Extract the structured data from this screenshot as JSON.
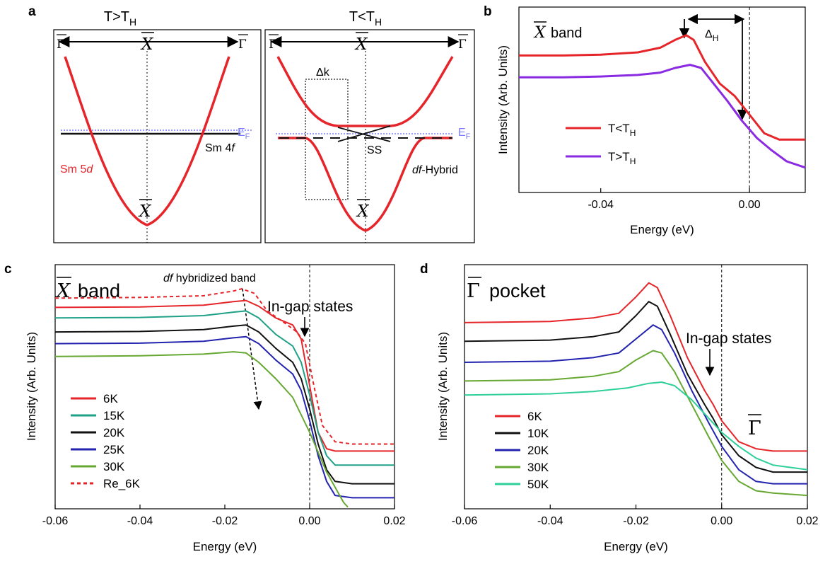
{
  "panels": {
    "a_left": {
      "label": "a",
      "title_main": "T>T",
      "title_sub": "H",
      "gamma": "Γ",
      "xbar": "X",
      "ef_main": "E",
      "ef_sub": "F",
      "flat_label_main": "Sm 4",
      "flat_label_italic": "f",
      "band_label_main": "Sm 5",
      "band_label_italic": "d"
    },
    "a_right": {
      "title_main": "T<T",
      "title_sub": "H",
      "gamma": "Γ",
      "xbar": "X",
      "dk": "Δk",
      "ss": "SS",
      "ef_main": "E",
      "ef_sub": "F",
      "hybrid_italic": "df",
      "hybrid_rest": "-Hybrid"
    },
    "b": {
      "label": "b",
      "annot_sym": "X",
      "annot_text": "band",
      "delta_main": "Δ",
      "delta_sub": "H"
    },
    "c": {
      "label": "c",
      "annot_sym": "X",
      "annot_text": "band",
      "note_df_italic": "df",
      "note_df_rest": " hybridized band",
      "note_ingap": "In-gap states"
    },
    "d": {
      "label": "d",
      "annot_sym": "Γ",
      "annot_text": "pocket",
      "note_ingap": "In-gap states",
      "corner_sym": "Γ"
    }
  },
  "colors": {
    "red": "#e5252a",
    "purple": "#8a2be2",
    "green_teal": "#1fa187",
    "black": "#111111",
    "blue": "#2323b0",
    "olive": "#66a832",
    "cyan_green": "#2fcf9a",
    "ef_blue": "#7b7bff"
  },
  "chart_data": [
    {
      "id": "b",
      "type": "line",
      "xlabel": "Energy (eV)",
      "ylabel": "Intensity (Arb. Units)",
      "xlim": [
        -0.062,
        0.015
      ],
      "xticks": [
        -0.04,
        0.0
      ],
      "xtick_labels": [
        "-0.04",
        "0.00"
      ],
      "ylim": [
        0,
        1
      ],
      "legend_placement": "bottom-center",
      "series": [
        {
          "name_main": "T<T",
          "name_sub": "H",
          "color": "#e5252a",
          "dashed": false,
          "x": [
            -0.062,
            -0.05,
            -0.04,
            -0.03,
            -0.024,
            -0.02,
            -0.017,
            -0.015,
            -0.012,
            -0.008,
            -0.004,
            0.0,
            0.004,
            0.008,
            0.015
          ],
          "y": [
            0.78,
            0.78,
            0.785,
            0.8,
            0.83,
            0.88,
            0.91,
            0.88,
            0.74,
            0.6,
            0.52,
            0.4,
            0.28,
            0.24,
            0.24
          ]
        },
        {
          "name_main": "T>T",
          "name_sub": "H",
          "color": "#8a2be2",
          "dashed": false,
          "x": [
            -0.062,
            -0.05,
            -0.04,
            -0.03,
            -0.024,
            -0.02,
            -0.016,
            -0.013,
            -0.01,
            -0.006,
            -0.002,
            0.002,
            0.006,
            0.01,
            0.015
          ],
          "y": [
            0.64,
            0.64,
            0.645,
            0.655,
            0.67,
            0.7,
            0.72,
            0.7,
            0.61,
            0.49,
            0.36,
            0.25,
            0.17,
            0.1,
            0.06
          ]
        }
      ]
    },
    {
      "id": "c",
      "type": "line",
      "xlabel": "Energy (eV)",
      "ylabel": "Intensity (Arb. Units)",
      "xlim": [
        -0.06,
        0.02
      ],
      "xticks": [
        -0.06,
        -0.04,
        -0.02,
        0.0,
        0.02
      ],
      "xtick_labels": [
        "-0.06",
        "-0.04",
        "-0.02",
        "0.00",
        "0.02"
      ],
      "ylim": [
        0,
        1
      ],
      "legend_placement": "bottom-left",
      "series": [
        {
          "name": "6K",
          "color": "#e5252a",
          "dashed": false,
          "x": [
            -0.06,
            -0.04,
            -0.025,
            -0.018,
            -0.015,
            -0.012,
            -0.008,
            -0.004,
            -0.002,
            0.0,
            0.002,
            0.004,
            0.006,
            0.01,
            0.02
          ],
          "y": [
            0.835,
            0.837,
            0.845,
            0.86,
            0.865,
            0.84,
            0.79,
            0.76,
            0.7,
            0.5,
            0.3,
            0.23,
            0.22,
            0.22,
            0.22
          ]
        },
        {
          "name": "15K",
          "color": "#1fa187",
          "dashed": false,
          "x": [
            -0.06,
            -0.04,
            -0.025,
            -0.018,
            -0.015,
            -0.012,
            -0.008,
            -0.004,
            -0.002,
            0.0,
            0.002,
            0.004,
            0.006,
            0.01,
            0.02
          ],
          "y": [
            0.79,
            0.792,
            0.8,
            0.815,
            0.82,
            0.79,
            0.72,
            0.67,
            0.6,
            0.46,
            0.3,
            0.2,
            0.16,
            0.16,
            0.16
          ]
        },
        {
          "name": "20K",
          "color": "#111111",
          "dashed": false,
          "x": [
            -0.06,
            -0.04,
            -0.025,
            -0.018,
            -0.015,
            -0.012,
            -0.008,
            -0.004,
            -0.002,
            0.0,
            0.002,
            0.004,
            0.006,
            0.01,
            0.02
          ],
          "y": [
            0.73,
            0.732,
            0.74,
            0.755,
            0.76,
            0.73,
            0.66,
            0.6,
            0.53,
            0.4,
            0.25,
            0.14,
            0.09,
            0.08,
            0.08
          ]
        },
        {
          "name": "25K",
          "color": "#2323b0",
          "dashed": false,
          "x": [
            -0.06,
            -0.04,
            -0.025,
            -0.018,
            -0.015,
            -0.012,
            -0.008,
            -0.004,
            -0.002,
            0.0,
            0.002,
            0.004,
            0.006,
            0.01,
            0.02
          ],
          "y": [
            0.68,
            0.682,
            0.69,
            0.705,
            0.71,
            0.68,
            0.61,
            0.55,
            0.48,
            0.35,
            0.2,
            0.09,
            0.03,
            0.02,
            0.02
          ]
        },
        {
          "name": "30K",
          "color": "#66a832",
          "dashed": false,
          "x": [
            -0.06,
            -0.04,
            -0.025,
            -0.018,
            -0.015,
            -0.012,
            -0.008,
            -0.004,
            0.0,
            0.004,
            0.008,
            0.009
          ],
          "y": [
            0.625,
            0.628,
            0.635,
            0.645,
            0.64,
            0.6,
            0.53,
            0.45,
            0.3,
            0.13,
            0.0,
            -0.02
          ]
        },
        {
          "name": "Re_6K",
          "color": "#e5252a",
          "dashed": true,
          "x": [
            -0.06,
            -0.04,
            -0.025,
            -0.018,
            -0.016,
            -0.013,
            -0.01,
            -0.006,
            -0.003,
            -0.001,
            0.001,
            0.003,
            0.006,
            0.01,
            0.02
          ],
          "y": [
            0.875,
            0.878,
            0.885,
            0.905,
            0.915,
            0.895,
            0.82,
            0.77,
            0.73,
            0.68,
            0.5,
            0.33,
            0.26,
            0.25,
            0.25
          ]
        }
      ]
    },
    {
      "id": "d",
      "type": "line",
      "xlabel": "Energy (eV)",
      "ylabel": "Intensity (Arb. Units)",
      "xlim": [
        -0.06,
        0.02
      ],
      "xticks": [
        -0.06,
        -0.04,
        -0.02,
        0.0,
        0.02
      ],
      "xtick_labels": [
        "-0.06",
        "-0.04",
        "-0.02",
        "0.00",
        "0.02"
      ],
      "ylim": [
        0,
        1
      ],
      "legend_placement": "bottom-left",
      "series": [
        {
          "name": "6K",
          "color": "#e5252a",
          "dashed": false,
          "x": [
            -0.06,
            -0.04,
            -0.03,
            -0.024,
            -0.02,
            -0.017,
            -0.015,
            -0.012,
            -0.008,
            -0.004,
            -0.002,
            0.0,
            0.004,
            0.008,
            0.012,
            0.02
          ],
          "y": [
            0.77,
            0.775,
            0.79,
            0.81,
            0.88,
            0.94,
            0.92,
            0.8,
            0.62,
            0.48,
            0.42,
            0.35,
            0.26,
            0.23,
            0.22,
            0.22
          ]
        },
        {
          "name": "10K",
          "color": "#111111",
          "dashed": false,
          "x": [
            -0.06,
            -0.04,
            -0.03,
            -0.024,
            -0.02,
            -0.017,
            -0.015,
            -0.012,
            -0.008,
            -0.004,
            -0.002,
            0.0,
            0.004,
            0.008,
            0.012,
            0.02
          ],
          "y": [
            0.69,
            0.695,
            0.71,
            0.73,
            0.8,
            0.86,
            0.84,
            0.72,
            0.55,
            0.42,
            0.36,
            0.29,
            0.2,
            0.15,
            0.13,
            0.13
          ]
        },
        {
          "name": "20K",
          "color": "#2323b0",
          "dashed": false,
          "x": [
            -0.06,
            -0.04,
            -0.03,
            -0.024,
            -0.02,
            -0.016,
            -0.014,
            -0.011,
            -0.007,
            -0.003,
            0.0,
            0.004,
            0.008,
            0.012,
            0.02
          ],
          "y": [
            0.6,
            0.605,
            0.62,
            0.64,
            0.7,
            0.76,
            0.74,
            0.64,
            0.48,
            0.34,
            0.24,
            0.14,
            0.09,
            0.08,
            0.08
          ]
        },
        {
          "name": "30K",
          "color": "#66a832",
          "dashed": false,
          "x": [
            -0.06,
            -0.04,
            -0.03,
            -0.024,
            -0.02,
            -0.016,
            -0.014,
            -0.011,
            -0.007,
            -0.003,
            0.0,
            0.004,
            0.008,
            0.012,
            0.02
          ],
          "y": [
            0.52,
            0.525,
            0.54,
            0.56,
            0.61,
            0.65,
            0.64,
            0.56,
            0.42,
            0.28,
            0.18,
            0.09,
            0.05,
            0.04,
            0.03
          ]
        },
        {
          "name": "50K",
          "color": "#2fcf9a",
          "dashed": false,
          "x": [
            -0.06,
            -0.04,
            -0.03,
            -0.022,
            -0.017,
            -0.014,
            -0.011,
            -0.007,
            -0.003,
            0.0,
            0.004,
            0.008,
            0.012,
            0.016,
            0.02
          ],
          "y": [
            0.46,
            0.465,
            0.475,
            0.49,
            0.51,
            0.515,
            0.5,
            0.44,
            0.36,
            0.3,
            0.24,
            0.19,
            0.16,
            0.15,
            0.14
          ]
        }
      ]
    }
  ]
}
